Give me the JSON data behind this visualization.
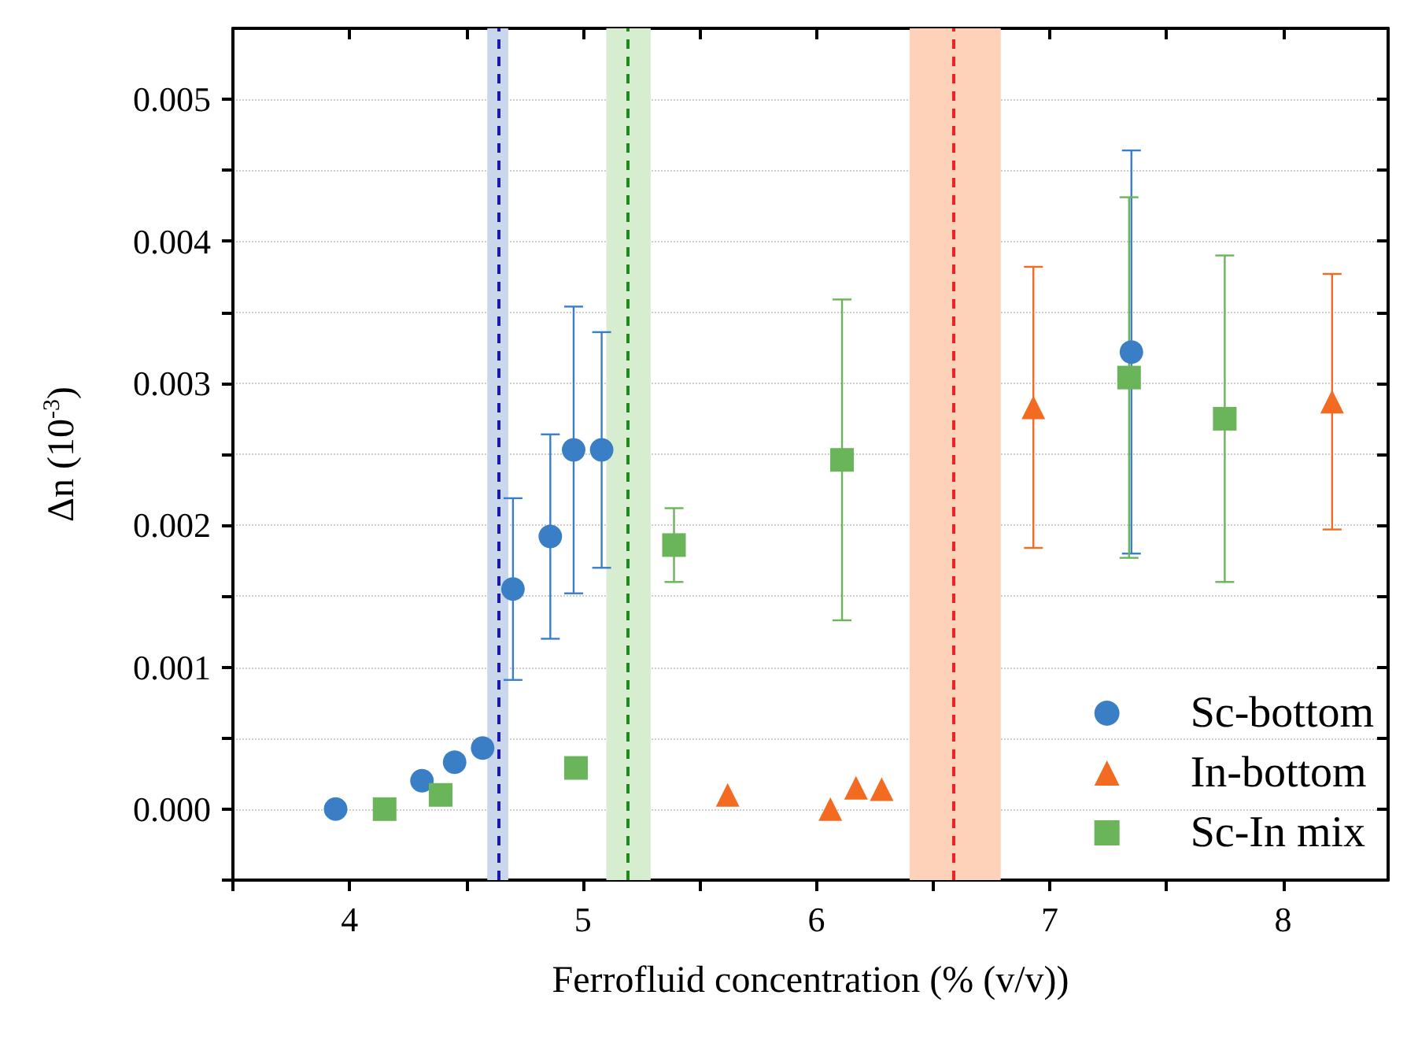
{
  "chart_data": {
    "type": "scatter",
    "xlabel": "Ferrofluid concentration (% (v/v))",
    "ylabel": "Δn (10$^{-3}$)",
    "xlim": [
      3.5,
      8.45
    ],
    "ylim": [
      -0.0005,
      0.0055
    ],
    "xticks": [
      {
        "value": 3.5,
        "label": null
      },
      4,
      {
        "value": 4.5,
        "label": null
      },
      5,
      {
        "value": 5.5,
        "label": null
      },
      6,
      {
        "value": 6.5,
        "label": null
      },
      7,
      {
        "value": 7.5,
        "label": null
      },
      8
    ],
    "yticks": [
      {
        "value": -0.0005,
        "label": null
      },
      {
        "value": 0,
        "label": "0.000"
      },
      {
        "value": 0.0005,
        "label": null
      },
      0.001,
      {
        "value": 0.0015,
        "label": null
      },
      0.002,
      {
        "value": 0.0025,
        "label": null
      },
      0.003,
      {
        "value": 0.0035,
        "label": null
      },
      0.004,
      {
        "value": 0.0045,
        "label": null
      },
      0.005
    ],
    "grid": "y",
    "legend": "bottom right",
    "series": [
      {
        "name": "Sc-bottom",
        "color": "#3a7fc6",
        "marker": "circle",
        "x": [
          3.94,
          4.31,
          4.45,
          4.57,
          4.7,
          4.86,
          4.96,
          5.08,
          7.35
        ],
        "values": [
          0,
          0.0002,
          0.00033,
          0.00043,
          0.00155,
          0.00192,
          0.00253,
          0.00253,
          0.00322
        ],
        "errors": [
          null,
          null,
          null,
          4e-05,
          0.00064,
          0.00072,
          0.00101,
          0.00083,
          0.00142
        ]
      },
      {
        "name": "In-bottom",
        "color": "#f26b21",
        "marker": "triangle",
        "x": [
          5.62,
          6.06,
          6.17,
          6.28,
          6.93,
          8.21
        ],
        "values": [
          0.0001,
          0,
          0.00015,
          0.00014,
          0.00283,
          0.00287
        ],
        "errors": [
          null,
          null,
          null,
          null,
          0.00099,
          0.0009
        ]
      },
      {
        "name": "Sc-In mix",
        "color": "#6ab45a",
        "marker": "square",
        "x": [
          4.15,
          4.39,
          4.97,
          5.39,
          6.11,
          7.34,
          7.75
        ],
        "values": [
          0,
          0.0001,
          0.00029,
          0.00186,
          0.00246,
          0.00304,
          0.00275
        ],
        "errors": [
          null,
          null,
          4e-05,
          0.00026,
          0.00113,
          0.00127,
          0.00115
        ]
      }
    ],
    "bands": [
      {
        "axis": "x",
        "from": 4.59,
        "to": 4.68,
        "color": "#c9d6ec"
      },
      {
        "axis": "x",
        "from": 5.1,
        "to": 5.29,
        "color": "#d6eecf"
      },
      {
        "axis": "x",
        "from": 6.4,
        "to": 6.79,
        "color": "#fdd2b8"
      }
    ],
    "ref_lines": [
      {
        "axis": "x",
        "value": 4.64,
        "color": "#1a1aa6",
        "line_style": "dashed"
      },
      {
        "axis": "x",
        "value": 5.19,
        "color": "#1e8a1e",
        "line_style": "dashed"
      },
      {
        "axis": "x",
        "value": 6.59,
        "color": "#ee2222",
        "line_style": "dashed"
      }
    ]
  }
}
